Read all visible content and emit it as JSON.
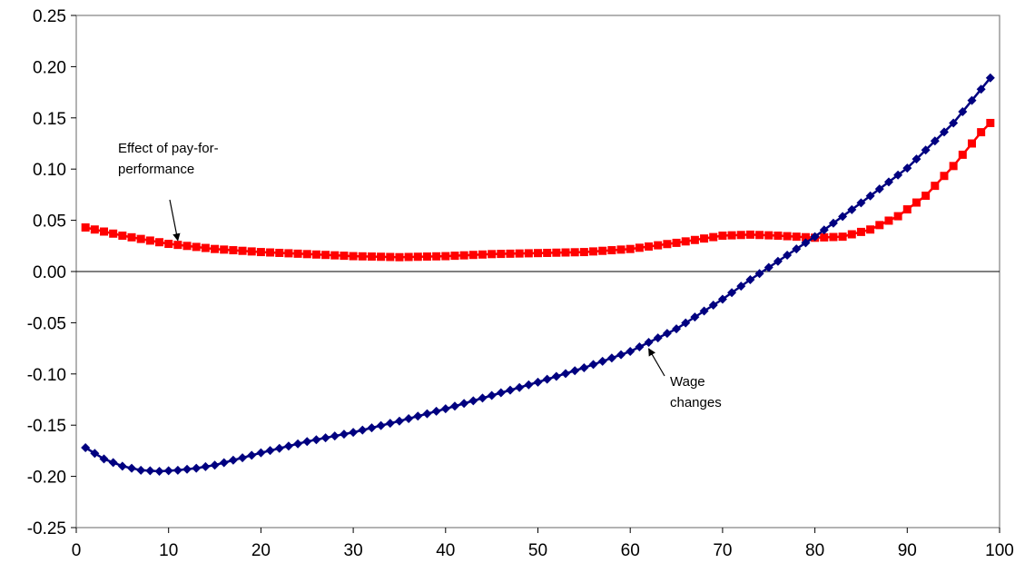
{
  "chart_data": {
    "type": "line",
    "title": "",
    "xlabel": "",
    "ylabel": "",
    "xlim": [
      0,
      100
    ],
    "ylim": [
      -0.25,
      0.25
    ],
    "x_ticks": [
      "0",
      "10",
      "20",
      "30",
      "40",
      "50",
      "60",
      "70",
      "80",
      "90",
      "100"
    ],
    "y_ticks": [
      "0.25",
      "0.20",
      "0.15",
      "0.10",
      "0.05",
      "0.00",
      "-0.05",
      "-0.10",
      "-0.15",
      "-0.20",
      "-0.25"
    ],
    "grid": false,
    "legend": "none",
    "series": [
      {
        "color": "#FF0000",
        "marker": "square",
        "x": [
          1,
          5,
          10,
          15,
          20,
          25,
          30,
          35,
          40,
          45,
          50,
          55,
          60,
          65,
          70,
          73,
          76,
          80,
          83,
          86,
          89,
          92,
          95,
          98,
          99
        ],
        "y": [
          0.043,
          0.035,
          0.027,
          0.022,
          0.019,
          0.017,
          0.015,
          0.014,
          0.015,
          0.017,
          0.018,
          0.019,
          0.022,
          0.028,
          0.035,
          0.036,
          0.035,
          0.033,
          0.034,
          0.041,
          0.054,
          0.074,
          0.103,
          0.136,
          0.145
        ]
      },
      {
        "color": "#000080",
        "marker": "diamond",
        "x": [
          1,
          3,
          5,
          7,
          9,
          11,
          13,
          15,
          20,
          25,
          30,
          35,
          40,
          45,
          50,
          55,
          60,
          65,
          70,
          73,
          75,
          80,
          85,
          90,
          95,
          99
        ],
        "y": [
          -0.172,
          -0.183,
          -0.19,
          -0.194,
          -0.195,
          -0.194,
          -0.192,
          -0.189,
          -0.177,
          -0.166,
          -0.157,
          -0.146,
          -0.134,
          -0.121,
          -0.108,
          -0.094,
          -0.078,
          -0.056,
          -0.027,
          -0.008,
          0.004,
          0.034,
          0.067,
          0.101,
          0.145,
          0.189
        ]
      }
    ],
    "annotations": [
      {
        "lines": [
          "Effect of pay-for-",
          "performance"
        ],
        "points_to_x": 11,
        "points_to_y": 0.025
      },
      {
        "lines": [
          "Wage",
          "changes"
        ],
        "points_to_x": 62,
        "points_to_y": -0.07
      }
    ]
  }
}
